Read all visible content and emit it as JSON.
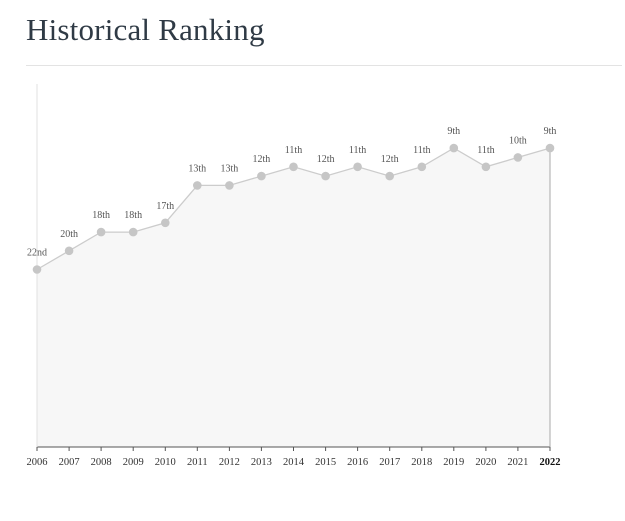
{
  "page": {
    "title": "Historical Ranking"
  },
  "chart_data": {
    "type": "area",
    "x": [
      "2006",
      "2007",
      "2008",
      "2009",
      "2010",
      "2011",
      "2012",
      "2013",
      "2014",
      "2015",
      "2016",
      "2017",
      "2018",
      "2019",
      "2020",
      "2021",
      "2022"
    ],
    "values": [
      22,
      20,
      18,
      18,
      17,
      13,
      13,
      12,
      11,
      12,
      11,
      12,
      11,
      9,
      11,
      10,
      9
    ],
    "labels": [
      "22nd",
      "20th",
      "18th",
      "18th",
      "17th",
      "13th",
      "13th",
      "12th",
      "11th",
      "12th",
      "11th",
      "12th",
      "11th",
      "9th",
      "11th",
      "10th",
      "9th"
    ],
    "highlight_x": "2022",
    "ylim": [
      41,
      0
    ],
    "y_inverted": true,
    "grid": false,
    "colors": {
      "line": "#cccccc",
      "marker": "#c6c6c6",
      "fill": "#f7f7f7",
      "axis": "#555555"
    }
  }
}
